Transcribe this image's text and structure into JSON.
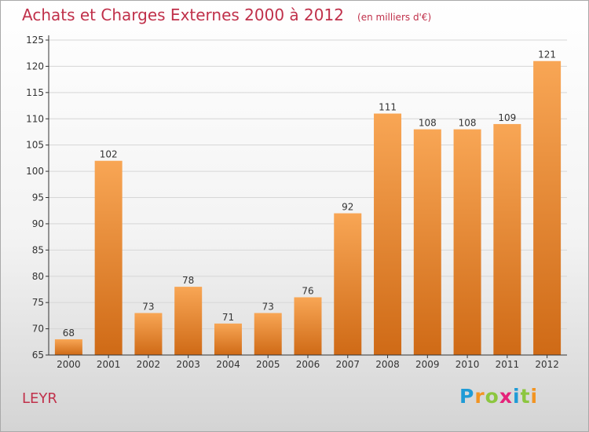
{
  "header": {
    "title": "Achats et Charges Externes 2000 à 2012",
    "subtitle": "(en milliers d'€)"
  },
  "footer": {
    "commune": "LEYR",
    "brand_letters": [
      "P",
      "r",
      "o",
      "x",
      "i",
      "t",
      "i"
    ],
    "brand_colors": [
      "#1f9bd6",
      "#f29422",
      "#8cc63f",
      "#e5237a",
      "#1f9bd6",
      "#8cc63f",
      "#f29422"
    ]
  },
  "colors": {
    "bar_top": "#f8a655",
    "bar_bottom": "#cf6a16",
    "grid": "#d6d6d6",
    "axis": "#333333",
    "title": "#c0304a"
  },
  "chart_data": {
    "type": "bar",
    "title": "Achats et Charges Externes 2000 à 2012",
    "subtitle": "(en milliers d'€)",
    "categories": [
      "2000",
      "2001",
      "2002",
      "2003",
      "2004",
      "2005",
      "2006",
      "2007",
      "2008",
      "2009",
      "2010",
      "2011",
      "2012"
    ],
    "values": [
      68,
      102,
      73,
      78,
      71,
      73,
      76,
      92,
      111,
      108,
      108,
      109,
      121
    ],
    "ylim": [
      65,
      125
    ],
    "yticks": [
      65,
      70,
      75,
      80,
      85,
      90,
      95,
      100,
      105,
      110,
      115,
      120,
      125
    ],
    "grid": true,
    "data_labels": true,
    "legend": "none"
  }
}
